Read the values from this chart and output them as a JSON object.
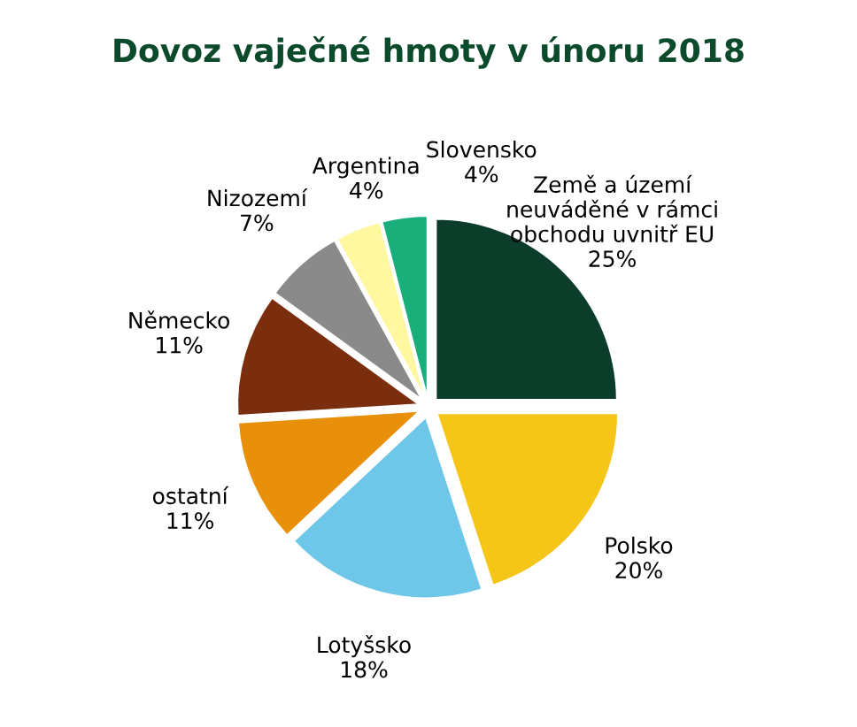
{
  "chart_data": {
    "type": "pie",
    "title": "Dovoz vaječné hmoty v únoru 2018",
    "categories": [
      "Země a území\nneuváděné v rámci\nobchodu uvnitř EU",
      "Polsko",
      "Lotyšsko",
      "ostatní",
      "Německo",
      "Nizozemí",
      "Argentina",
      "Slovensko"
    ],
    "values": [
      25,
      20,
      18,
      11,
      11,
      7,
      4,
      4
    ],
    "value_labels": [
      "25%",
      "20%",
      "18%",
      "11%",
      "11%",
      "7%",
      "4%",
      "4%"
    ],
    "colors": [
      "#0b3d2a",
      "#f5c518",
      "#6ec6e8",
      "#e8900a",
      "#7a2e0e",
      "#8a8a8a",
      "#fff8a0",
      "#1aaf7a"
    ],
    "legend": false
  }
}
